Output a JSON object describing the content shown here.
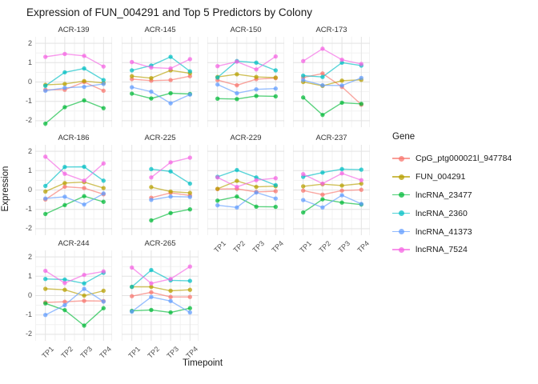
{
  "title": "Expression of FUN_004291 and Top 5 Predictors by Colony",
  "axes": {
    "x_label": "Timepoint",
    "y_label": "Expression",
    "x_ticks": [
      "TP1",
      "TP2",
      "TP3",
      "TP4"
    ],
    "y_ticks": [
      "2",
      "1",
      "0",
      "-1",
      "-2"
    ]
  },
  "legend": {
    "title": "Gene"
  },
  "chart_data": {
    "type": "line",
    "x": [
      "TP1",
      "TP2",
      "TP3",
      "TP4"
    ],
    "ylim": [
      -2.35,
      2.35
    ],
    "y_tick_values": [
      2,
      1,
      0,
      -1,
      -2
    ],
    "grid": true,
    "legend_position": "right",
    "series_names": [
      "CpG_ptg000021l_947784",
      "FUN_004291",
      "lncRNA_23477",
      "lncRNA_2360",
      "lncRNA_41373",
      "lncRNA_7524"
    ],
    "colors": {
      "CpG_ptg000021l_947784": "#F8766D",
      "FUN_004291": "#B79F00",
      "lncRNA_23477": "#00BA38",
      "lncRNA_2360": "#00BFC4",
      "lncRNA_41373": "#619CFF",
      "lncRNA_7524": "#F564E3"
    },
    "facets": [
      {
        "name": "ACR-139",
        "series": {
          "CpG_ptg000021l_947784": [
            -0.4,
            -0.4,
            0.0,
            -0.45
          ],
          "FUN_004291": [
            -0.15,
            -0.1,
            0.05,
            -0.05
          ],
          "lncRNA_23477": [
            -2.15,
            -1.3,
            -0.95,
            -1.35
          ],
          "lncRNA_2360": [
            -0.2,
            0.5,
            0.7,
            0.1
          ],
          "lncRNA_41373": [
            -0.45,
            -0.3,
            -0.25,
            -0.1
          ],
          "lncRNA_7524": [
            1.3,
            1.45,
            1.35,
            0.8
          ]
        }
      },
      {
        "name": "ACR-145",
        "series": {
          "CpG_ptg000021l_947784": [
            0.15,
            0.07,
            0.1,
            0.3
          ],
          "FUN_004291": [
            0.3,
            0.2,
            0.6,
            0.45
          ],
          "lncRNA_23477": [
            -0.6,
            -0.85,
            -0.58,
            -0.62
          ],
          "lncRNA_2360": [
            0.6,
            0.85,
            1.3,
            0.55
          ],
          "lncRNA_41373": [
            -0.27,
            -0.5,
            -1.1,
            -0.65
          ],
          "lncRNA_7524": [
            1.03,
            0.75,
            0.7,
            1.18
          ]
        }
      },
      {
        "name": "ACR-150",
        "series": {
          "CpG_ptg000021l_947784": [
            0.1,
            -0.17,
            0.15,
            0.2
          ],
          "FUN_004291": [
            0.26,
            0.4,
            0.26,
            0.23
          ],
          "lncRNA_23477": [
            -0.86,
            -0.88,
            -0.72,
            -0.74
          ],
          "lncRNA_2360": [
            0.23,
            1.08,
            1.0,
            0.6
          ],
          "lncRNA_41373": [
            -0.13,
            -0.58,
            -0.38,
            -0.34
          ],
          "lncRNA_7524": [
            0.82,
            1.05,
            0.65,
            1.32
          ]
        }
      },
      {
        "name": "ACR-173",
        "series": {
          "CpG_ptg000021l_947784": [
            0.23,
            0.44,
            -0.25,
            -1.17
          ],
          "FUN_004291": [
            0.0,
            -0.2,
            0.07,
            0.11
          ],
          "lncRNA_23477": [
            -0.8,
            -1.7,
            -1.07,
            -1.13
          ],
          "lncRNA_2360": [
            0.33,
            0.26,
            1.0,
            0.85
          ],
          "lncRNA_41373": [
            0.1,
            -0.17,
            -0.18,
            0.21
          ],
          "lncRNA_7524": [
            1.08,
            1.72,
            1.15,
            0.93
          ]
        }
      },
      {
        "name": "ACR-186",
        "series": {
          "CpG_ptg000021l_947784": [
            -0.49,
            0.17,
            0.1,
            -0.22
          ],
          "FUN_004291": [
            -0.08,
            0.36,
            0.41,
            0.1
          ],
          "lncRNA_23477": [
            -1.24,
            -0.78,
            -0.32,
            -0.61
          ],
          "lncRNA_2360": [
            0.21,
            1.19,
            1.2,
            0.48
          ],
          "lncRNA_41373": [
            -0.44,
            -0.35,
            -0.75,
            -0.18
          ],
          "lncRNA_7524": [
            1.72,
            0.84,
            0.48,
            1.37
          ]
        }
      },
      {
        "name": "ACR-225",
        "series": {
          "CpG_ptg000021l_947784": [
            null,
            -0.4,
            -0.15,
            -0.28
          ],
          "FUN_004291": [
            null,
            0.15,
            -0.08,
            -0.15
          ],
          "lncRNA_23477": [
            null,
            -1.57,
            -1.19,
            -1.0
          ],
          "lncRNA_2360": [
            null,
            1.08,
            0.96,
            0.33
          ],
          "lncRNA_41373": [
            null,
            -0.51,
            -0.34,
            -0.36
          ],
          "lncRNA_7524": [
            null,
            0.65,
            1.43,
            1.67
          ]
        }
      },
      {
        "name": "ACR-229",
        "series": {
          "CpG_ptg000021l_947784": [
            0.05,
            0.06,
            -0.1,
            -0.06
          ],
          "FUN_004291": [
            0.06,
            0.47,
            0.16,
            0.2
          ],
          "lncRNA_23477": [
            -0.55,
            -0.34,
            -0.86,
            -0.87
          ],
          "lncRNA_2360": [
            0.68,
            1.03,
            0.65,
            0.25
          ],
          "lncRNA_41373": [
            -0.79,
            -0.9,
            -0.13,
            -0.44
          ],
          "lncRNA_7524": [
            0.65,
            0.16,
            0.51,
            0.61
          ]
        }
      },
      {
        "name": "ACR-237",
        "series": {
          "CpG_ptg000021l_947784": [
            -0.03,
            -0.24,
            -0.03,
            0.01
          ],
          "FUN_004291": [
            0.19,
            0.3,
            0.23,
            0.33
          ],
          "lncRNA_23477": [
            -1.16,
            -0.48,
            -0.65,
            -0.75
          ],
          "lncRNA_2360": [
            0.68,
            0.9,
            1.08,
            1.05
          ],
          "lncRNA_41373": [
            -0.52,
            -0.9,
            -0.27,
            -0.72
          ],
          "lncRNA_7524": [
            0.82,
            0.33,
            0.86,
            0.51
          ]
        }
      },
      {
        "name": "ACR-244",
        "series": {
          "CpG_ptg000021l_947784": [
            -0.35,
            -0.32,
            -0.27,
            -0.28
          ],
          "FUN_004291": [
            0.35,
            0.3,
            0.0,
            0.25
          ],
          "lncRNA_23477": [
            -0.4,
            -0.75,
            -1.55,
            -0.65
          ],
          "lncRNA_2360": [
            0.86,
            0.83,
            0.63,
            1.18
          ],
          "lncRNA_41373": [
            -1.0,
            -0.49,
            0.35,
            -0.31
          ],
          "lncRNA_7524": [
            1.28,
            0.65,
            1.07,
            1.25
          ]
        }
      },
      {
        "name": "ACR-265",
        "series": {
          "CpG_ptg000021l_947784": [
            -0.03,
            0.17,
            -0.07,
            -0.07
          ],
          "FUN_004291": [
            0.45,
            0.45,
            0.25,
            0.3
          ],
          "lncRNA_23477": [
            -0.79,
            -0.74,
            -0.87,
            -0.65
          ],
          "lncRNA_2360": [
            0.45,
            1.32,
            0.79,
            0.76
          ],
          "lncRNA_41373": [
            -0.83,
            -0.07,
            -0.28,
            -0.87
          ],
          "lncRNA_7524": [
            1.45,
            0.63,
            0.86,
            1.5
          ]
        }
      }
    ],
    "facets_with_x_ticks": [
      "ACR-229",
      "ACR-237",
      "ACR-244",
      "ACR-265"
    ],
    "facets_with_y_ticks": [
      "ACR-139",
      "ACR-186",
      "ACR-244"
    ]
  }
}
